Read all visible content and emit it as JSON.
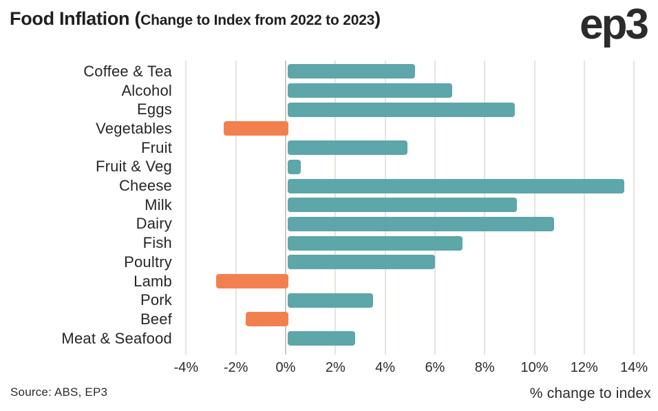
{
  "header": {
    "title_big_open": "Food Inflation (",
    "title_small": "Change to Index from 2022 to 2023",
    "title_big_close": ")",
    "logo": "ep3"
  },
  "chart_data": {
    "type": "bar",
    "orientation": "horizontal",
    "title": "Food Inflation (Change to Index from 2022 to 2023)",
    "categories": [
      "Coffee & Tea",
      "Alcohol",
      "Eggs",
      "Vegetables",
      "Fruit",
      "Fruit & Veg",
      "Cheese",
      "Milk",
      "Dairy",
      "Fish",
      "Poultry",
      "Lamb",
      "Pork",
      "Beef",
      "Meat & Seafood"
    ],
    "values": [
      5.2,
      6.7,
      9.2,
      -2.5,
      4.9,
      0.6,
      13.6,
      9.3,
      10.8,
      7.1,
      6.0,
      -2.8,
      3.5,
      -1.6,
      2.8
    ],
    "value_unit": "%",
    "xlabel": "% change to index",
    "ylabel": "",
    "xlim": [
      -5,
      15
    ],
    "xticks": [
      -4,
      -2,
      0,
      2,
      4,
      6,
      8,
      10,
      12,
      14
    ],
    "xtick_labels": [
      "-4%",
      "-2%",
      "0%",
      "2%",
      "4%",
      "6%",
      "8%",
      "10%",
      "12%",
      "14%"
    ],
    "grid": true,
    "legend": false,
    "colors": {
      "positive": "#5da6aa",
      "negative": "#f2804e",
      "gridline": "#e5e4da",
      "zero_line": "#c9c9c6"
    }
  },
  "footer": {
    "source": "Source: ABS, EP3",
    "axis_note": "% change to index"
  }
}
